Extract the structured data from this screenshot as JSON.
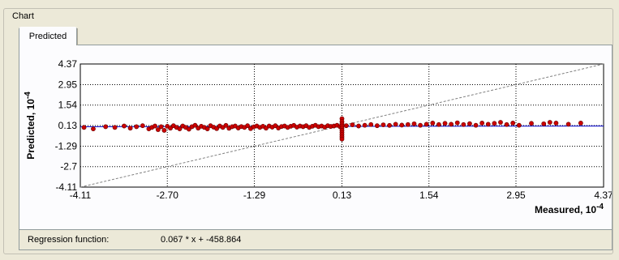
{
  "groupbox": {
    "title": "Chart"
  },
  "tabs": [
    {
      "label": "Predicted",
      "active": true
    }
  ],
  "status": {
    "label": "Regression function:",
    "value": "0.067 * x + -458.864"
  },
  "colors": {
    "window_bg": "#ece9d8",
    "panel_bg": "#fcfcfe",
    "points": "#cc0000",
    "regression_line": "#0000cc",
    "identity_line": "#808080"
  },
  "chart_data": {
    "type": "scatter",
    "xlabel": "Measured, 10",
    "xlabel_exponent": "-4",
    "ylabel": "Predicted, 10",
    "ylabel_exponent": "-4",
    "xlim": [
      -4.11,
      4.37
    ],
    "ylim": [
      -4.11,
      4.37
    ],
    "x_ticks": [
      "-4.11",
      "-2.70",
      "-1.29",
      "0.13",
      "1.54",
      "2.95",
      "4.37"
    ],
    "y_ticks": [
      "4.37",
      "2.95",
      "1.54",
      "0.13",
      "-1.29",
      "-2.7",
      "-4.11"
    ],
    "x_tick_values": [
      -4.11,
      -2.7,
      -1.29,
      0.13,
      1.54,
      2.95,
      4.37
    ],
    "y_tick_values": [
      4.37,
      2.95,
      1.54,
      0.13,
      -1.29,
      -2.7,
      -4.11
    ],
    "grid": true,
    "regression": {
      "slope": 0.067,
      "intercept_plot": 0.05
    },
    "identity_line": true,
    "series": [
      {
        "points": [
          [
            -4.05,
            0.0
          ],
          [
            -3.9,
            -0.1
          ],
          [
            -3.7,
            0.05
          ],
          [
            -3.55,
            0.0
          ],
          [
            -3.4,
            0.1
          ],
          [
            -3.3,
            -0.05
          ],
          [
            -3.2,
            0.05
          ],
          [
            -3.1,
            0.12
          ],
          [
            -3.0,
            -0.1
          ],
          [
            -2.95,
            0.0
          ],
          [
            -2.9,
            0.1
          ],
          [
            -2.85,
            -0.15
          ],
          [
            -2.8,
            0.05
          ],
          [
            -2.75,
            -0.2
          ],
          [
            -2.7,
            0.08
          ],
          [
            -2.65,
            -0.05
          ],
          [
            -2.6,
            0.12
          ],
          [
            -2.55,
            0.0
          ],
          [
            -2.5,
            -0.1
          ],
          [
            -2.45,
            0.1
          ],
          [
            -2.4,
            0.0
          ],
          [
            -2.35,
            -0.12
          ],
          [
            -2.3,
            0.05
          ],
          [
            -2.25,
            0.15
          ],
          [
            -2.2,
            -0.05
          ],
          [
            -2.15,
            0.08
          ],
          [
            -2.1,
            0.0
          ],
          [
            -2.05,
            -0.1
          ],
          [
            -2.0,
            0.12
          ],
          [
            -1.95,
            0.02
          ],
          [
            -1.9,
            -0.08
          ],
          [
            -1.85,
            0.1
          ],
          [
            -1.8,
            0.0
          ],
          [
            -1.75,
            0.14
          ],
          [
            -1.7,
            -0.06
          ],
          [
            -1.65,
            0.05
          ],
          [
            -1.6,
            0.1
          ],
          [
            -1.55,
            -0.04
          ],
          [
            -1.5,
            0.06
          ],
          [
            -1.45,
            0.0
          ],
          [
            -1.4,
            0.12
          ],
          [
            -1.35,
            -0.08
          ],
          [
            -1.3,
            0.04
          ],
          [
            -1.25,
            0.1
          ],
          [
            -1.2,
            0.0
          ],
          [
            -1.15,
            0.08
          ],
          [
            -1.1,
            -0.05
          ],
          [
            -1.05,
            0.1
          ],
          [
            -1.0,
            0.02
          ],
          [
            -0.95,
            0.12
          ],
          [
            -0.9,
            -0.04
          ],
          [
            -0.85,
            0.06
          ],
          [
            -0.8,
            0.1
          ],
          [
            -0.75,
            0.0
          ],
          [
            -0.7,
            0.08
          ],
          [
            -0.65,
            0.14
          ],
          [
            -0.6,
            0.02
          ],
          [
            -0.55,
            0.1
          ],
          [
            -0.5,
            0.05
          ],
          [
            -0.45,
            0.12
          ],
          [
            -0.4,
            0.0
          ],
          [
            -0.35,
            0.08
          ],
          [
            -0.3,
            0.15
          ],
          [
            -0.25,
            0.05
          ],
          [
            -0.2,
            0.1
          ],
          [
            -0.15,
            0.02
          ],
          [
            -0.1,
            0.12
          ],
          [
            -0.05,
            0.07
          ],
          [
            0.0,
            0.1
          ],
          [
            0.05,
            0.15
          ],
          [
            0.1,
            0.05
          ],
          [
            0.13,
            0.6
          ],
          [
            0.13,
            0.4
          ],
          [
            0.13,
            0.25
          ],
          [
            0.13,
            0.1
          ],
          [
            0.13,
            -0.05
          ],
          [
            0.13,
            -0.2
          ],
          [
            0.13,
            -0.35
          ],
          [
            0.13,
            -0.5
          ],
          [
            0.13,
            -0.65
          ],
          [
            0.13,
            -0.8
          ],
          [
            0.2,
            0.12
          ],
          [
            0.3,
            0.18
          ],
          [
            0.4,
            0.1
          ],
          [
            0.5,
            0.15
          ],
          [
            0.6,
            0.2
          ],
          [
            0.7,
            0.12
          ],
          [
            0.8,
            0.18
          ],
          [
            0.9,
            0.14
          ],
          [
            1.0,
            0.22
          ],
          [
            1.1,
            0.16
          ],
          [
            1.2,
            0.2
          ],
          [
            1.3,
            0.25
          ],
          [
            1.4,
            0.15
          ],
          [
            1.5,
            0.22
          ],
          [
            1.6,
            0.3
          ],
          [
            1.7,
            0.2
          ],
          [
            1.8,
            0.28
          ],
          [
            1.9,
            0.22
          ],
          [
            2.0,
            0.32
          ],
          [
            2.1,
            0.2
          ],
          [
            2.2,
            0.26
          ],
          [
            2.3,
            0.15
          ],
          [
            2.4,
            0.3
          ],
          [
            2.5,
            0.22
          ],
          [
            2.6,
            0.28
          ],
          [
            2.7,
            0.35
          ],
          [
            2.8,
            0.2
          ],
          [
            2.9,
            0.3
          ],
          [
            3.0,
            0.15
          ],
          [
            3.2,
            0.28
          ],
          [
            3.4,
            0.25
          ],
          [
            3.5,
            0.35
          ],
          [
            3.6,
            0.3
          ],
          [
            3.8,
            0.22
          ],
          [
            4.0,
            0.3
          ]
        ]
      }
    ]
  }
}
